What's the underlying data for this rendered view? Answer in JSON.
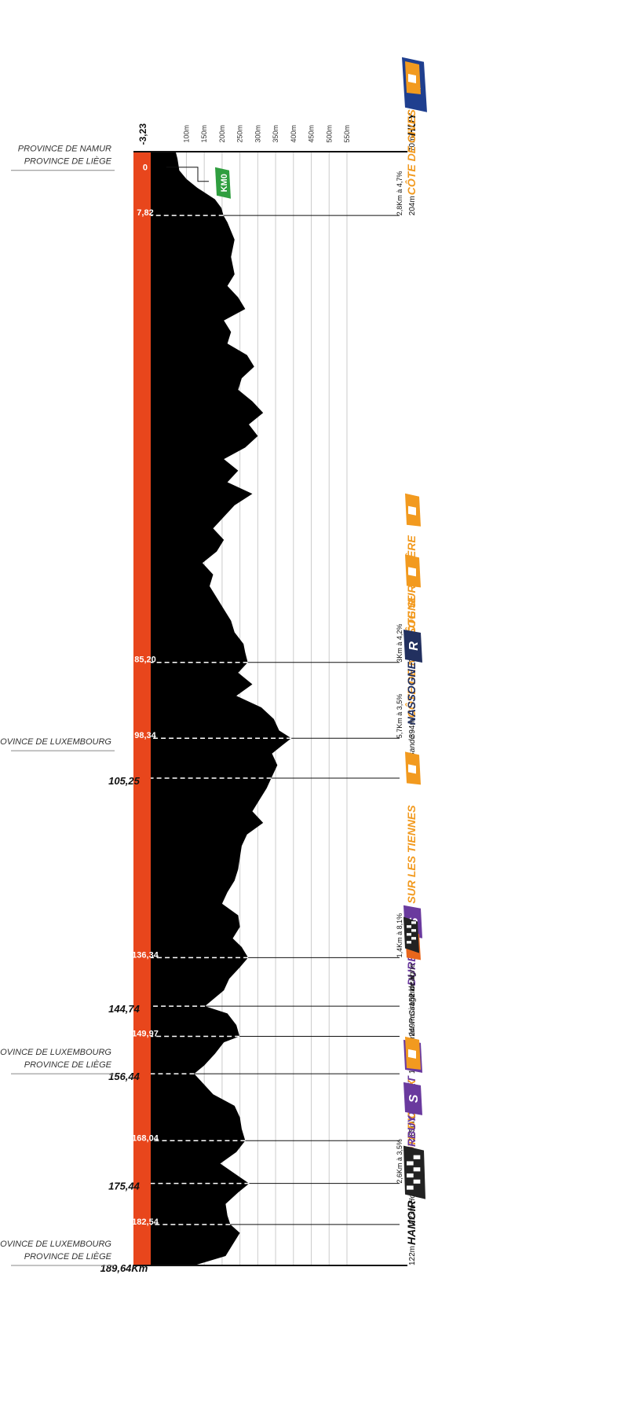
{
  "chart_data": {
    "type": "area",
    "title": "",
    "xlabel": "",
    "ylabel": "",
    "x_unit": "km",
    "xlim": [
      -3.23,
      189.64
    ],
    "ylim": [
      0,
      550
    ],
    "y_ticks": [
      {
        "value": 100,
        "label": "100m"
      },
      {
        "value": 150,
        "label": "150m"
      },
      {
        "value": 200,
        "label": "200m"
      },
      {
        "value": 250,
        "label": "250m"
      },
      {
        "value": 300,
        "label": "300m"
      },
      {
        "value": 350,
        "label": "350m"
      },
      {
        "value": 400,
        "label": "400m"
      },
      {
        "value": 450,
        "label": "450m"
      },
      {
        "value": 500,
        "label": "500m"
      },
      {
        "value": 550,
        "label": "550m"
      }
    ],
    "start_label": "-3,23",
    "end_label": "189,64Km",
    "profile": {
      "x": [
        -3.23,
        -2,
        0,
        1.5,
        3,
        5,
        6.5,
        7.82,
        9,
        12,
        15,
        18,
        20,
        22,
        24,
        26,
        28,
        30,
        32,
        34,
        36,
        38,
        40,
        42,
        44,
        46,
        48,
        50,
        52,
        54,
        56,
        58,
        60,
        62,
        64,
        66,
        68,
        70,
        72,
        74,
        76,
        78,
        80,
        82,
        83.5,
        85.2,
        87,
        89,
        91,
        93,
        95,
        97,
        98.34,
        99.5,
        101,
        103,
        105.25,
        107,
        109,
        111,
        113,
        115,
        117,
        119,
        121,
        123,
        125,
        127,
        129,
        131,
        133,
        134.5,
        136.34,
        138,
        140,
        142,
        144.74,
        146,
        148,
        149.97,
        151,
        153,
        155,
        156.44,
        158,
        160,
        162,
        164,
        166,
        168.04,
        170,
        172,
        173.5,
        175.44,
        177,
        179,
        181,
        182.54,
        184,
        186,
        188,
        189.64
      ],
      "elevation": [
        70,
        75,
        80,
        100,
        130,
        180,
        198,
        204,
        215,
        235,
        225,
        235,
        215,
        245,
        265,
        205,
        225,
        215,
        270,
        290,
        255,
        245,
        285,
        315,
        275,
        300,
        265,
        205,
        245,
        215,
        285,
        235,
        205,
        175,
        205,
        185,
        145,
        175,
        165,
        185,
        205,
        225,
        235,
        260,
        265,
        272,
        245,
        285,
        240,
        310,
        345,
        360,
        394,
        370,
        340,
        355,
        338,
        325,
        305,
        285,
        315,
        270,
        255,
        250,
        245,
        235,
        215,
        200,
        245,
        250,
        230,
        255,
        273,
        250,
        220,
        205,
        152,
        215,
        240,
        249,
        205,
        180,
        150,
        122,
        145,
        175,
        235,
        250,
        255,
        265,
        240,
        195,
        230,
        276,
        245,
        210,
        215,
        223,
        250,
        230,
        210,
        122
      ]
    },
    "markers": [
      {
        "x": -3.23,
        "elev": 70,
        "line": "solid-full",
        "km_label": "",
        "alt_label": "70m",
        "name": "HUY",
        "note": "",
        "badge": "start",
        "badge_text": "",
        "color": "#111111"
      },
      {
        "x": 0,
        "elev": 80,
        "line": "bracket",
        "km_label": "0",
        "alt_label": "",
        "name": "",
        "note": "",
        "badge": "kmo",
        "badge_text": "KM0",
        "color": "#111111"
      },
      {
        "x": 7.82,
        "elev": 204,
        "line": "dash",
        "km_label": "7,82",
        "alt_label": "204m",
        "name": "CÔTE DE GIVES",
        "note": "2,8Km à 4,7%",
        "badge": "climb",
        "badge_text": "",
        "color": "#f29a1f"
      },
      {
        "x": 85.2,
        "elev": 272,
        "line": "dash",
        "km_label": "85,20",
        "alt_label": "272m",
        "name": "CÔTE SUR SOHÈRE",
        "note": "3Km à 4,2%",
        "badge": "climb",
        "badge_text": "",
        "color": "#f29a1f"
      },
      {
        "x": 98.34,
        "elev": 394,
        "line": "dash",
        "km_label": "98,34",
        "alt_label": "394m",
        "name": "CÔTE DE NASSSOGNE",
        "note": "5,7Km à 3,5%",
        "badge": "climb",
        "badge_text": "",
        "color": "#f29a1f"
      },
      {
        "x": 105.25,
        "elev": 338,
        "line": "dash",
        "km_label": "",
        "alt_label": "338m",
        "name": "NASSOGNE",
        "note": "Bande -",
        "badge": "ravito",
        "badge_text": "R",
        "color": "#22305f"
      },
      {
        "x": 136.34,
        "elev": 273,
        "line": "dash",
        "km_label": "136,34",
        "alt_label": "273m",
        "name": "CÔTE SUR LES TIENNES",
        "note": "1,4Km à 8,1%",
        "badge": "climb",
        "badge_text": "",
        "color": "#f29a1f"
      },
      {
        "x": 144.74,
        "elev": 152,
        "line": "dash",
        "km_label": "",
        "alt_label": "152m",
        "name": "DURBUY",
        "note": "",
        "badge": "sprint",
        "badge_text": "S",
        "color": "#6a3a9e"
      },
      {
        "x": 149.97,
        "elev": 249,
        "line": "dash",
        "km_label": "149,97",
        "alt_label": "249m",
        "name": "",
        "note": "Circuit local",
        "badge": "circuit",
        "badge_text": "C",
        "color": "#222222"
      },
      {
        "x": 156.44,
        "elev": 122,
        "line": "dash",
        "km_label": "",
        "alt_label": "122m",
        "name": "",
        "note": "Premier Passage de ligne",
        "badge": "flag-small",
        "badge_text": "",
        "color": "#222222"
      },
      {
        "x": 168.04,
        "elev": 265,
        "line": "dash",
        "km_label": "168,04",
        "alt_label": "265m",
        "name": "OUFFET",
        "note": "",
        "badge": "sprint",
        "badge_text": "S",
        "color": "#6a3a9e"
      },
      {
        "x": 175.44,
        "elev": 276,
        "line": "dash",
        "km_label": "",
        "alt_label": "276m",
        "name": "CÔTE D'ONEUX",
        "note": "2,6Km à 3,5%",
        "badge": "climb",
        "badge_text": "",
        "color": "#f29a1f"
      },
      {
        "x": 182.54,
        "elev": 223,
        "line": "dash",
        "km_label": "182,54",
        "alt_label": "223m",
        "name": "DURBUY",
        "note": "Houmart -",
        "badge": "sprint",
        "badge_text": "S",
        "color": "#6a3a9e"
      },
      {
        "x": 189.64,
        "elev": 122,
        "line": "solid-full",
        "km_label": "",
        "alt_label": "122m",
        "name": "HAMOIR",
        "note": "",
        "badge": "finish",
        "badge_text": "",
        "color": "#111111"
      }
    ],
    "below_km_labels": [
      {
        "x": 105.25,
        "label": "105,25"
      },
      {
        "x": 144.74,
        "label": "144,74"
      },
      {
        "x": 156.44,
        "label": "156,44"
      },
      {
        "x": 175.44,
        "label": "175,44"
      },
      {
        "x": 189.64,
        "label": "189,64Km"
      }
    ],
    "provinces": [
      {
        "x": 0,
        "lines": [
          "PROVINCE DE LIÈGE",
          "PROVINCE DE NAMUR"
        ]
      },
      {
        "x": 100.5,
        "lines": [
          "PROVINCE DE LUXEMBOURG"
        ]
      },
      {
        "x": 156.44,
        "lines": [
          "PROVINCE DE LIÈGE",
          "PROVINCE DE LUXEMBOURG"
        ]
      },
      {
        "x": 189.64,
        "lines": [
          "PROVINCE DE LIÈGE",
          "PROVINCE DE LUXEMBOURG"
        ]
      }
    ],
    "colors": {
      "profile": "#000000",
      "km_bar": "#e8461c",
      "climb": "#f29a1f",
      "sprint": "#6a3a9e",
      "ravito": "#22305f",
      "start_badge": "#1f3f8f",
      "kmo": "#2f9e3f",
      "grid": "#cccccc"
    }
  }
}
